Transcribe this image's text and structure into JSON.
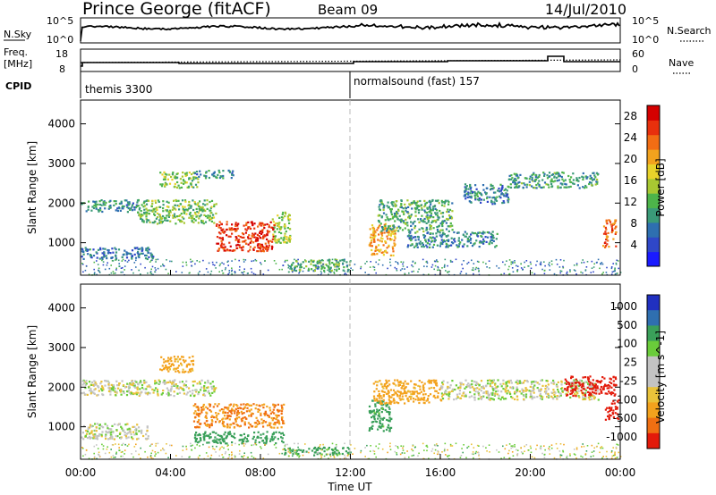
{
  "header": {
    "station": "Prince George (fitACF)",
    "beam": "Beam 09",
    "date": "14/Jul/2010"
  },
  "noise_panel": {
    "left_label": "N.Sky",
    "right_label": "N.Search",
    "left_ticks": [
      "10^5",
      "10^0"
    ],
    "right_ticks": [
      "10^5",
      "10^0"
    ],
    "line_color": "#000000"
  },
  "freq_panel": {
    "left_label_1": "Freq.",
    "left_label_2": "[MHz]",
    "right_label": "Nave",
    "left_ticks": [
      "18",
      "8"
    ],
    "right_ticks": [
      "60",
      "0"
    ]
  },
  "cpid": {
    "label": "CPID",
    "segments": [
      "themis 3300",
      "normalsound (fast) 157"
    ]
  },
  "chart_data": [
    {
      "type": "heatmap",
      "parameter": "power",
      "ylabel": "Slant Range [km]",
      "xlabel": "Time UT",
      "xlim_hours": [
        0,
        24
      ],
      "ylim_km": [
        180,
        4600
      ],
      "y_ticks": [
        "1000",
        "2000",
        "3000",
        "4000"
      ],
      "x_ticks": [
        "00:00",
        "04:00",
        "08:00",
        "12:00",
        "16:00",
        "20:00",
        "00:00"
      ],
      "colorbar": {
        "label": "Power [dB]",
        "ticks": [
          "4",
          "8",
          "12",
          "16",
          "20",
          "24",
          "28"
        ],
        "range": [
          0,
          30
        ]
      },
      "regions": [
        {
          "t": [
            0.0,
            2.6
          ],
          "r": [
            1800,
            2100
          ],
          "v": 9
        },
        {
          "t": [
            0.0,
            3.2
          ],
          "r": [
            600,
            900
          ],
          "v": 7
        },
        {
          "t": [
            2.5,
            6.0
          ],
          "r": [
            1500,
            2100
          ],
          "v": 13
        },
        {
          "t": [
            3.5,
            5.2
          ],
          "r": [
            2400,
            2800
          ],
          "v": 14
        },
        {
          "t": [
            5.0,
            6.8
          ],
          "r": [
            2650,
            2850
          ],
          "v": 9
        },
        {
          "t": [
            6.0,
            8.6
          ],
          "r": [
            800,
            1550
          ],
          "v": 26
        },
        {
          "t": [
            8.5,
            9.3
          ],
          "r": [
            1000,
            1800
          ],
          "v": 15
        },
        {
          "t": [
            9.3,
            12.0
          ],
          "r": [
            300,
            600
          ],
          "v": 12
        },
        {
          "t": [
            12.8,
            14.0
          ],
          "r": [
            700,
            1500
          ],
          "v": 20
        },
        {
          "t": [
            13.2,
            16.5
          ],
          "r": [
            1300,
            2100
          ],
          "v": 11
        },
        {
          "t": [
            14.5,
            18.5
          ],
          "r": [
            900,
            1300
          ],
          "v": 8
        },
        {
          "t": [
            17.0,
            19.0
          ],
          "r": [
            2000,
            2500
          ],
          "v": 8
        },
        {
          "t": [
            19.0,
            23.0
          ],
          "r": [
            2400,
            2800
          ],
          "v": 10
        },
        {
          "t": [
            23.2,
            23.8
          ],
          "r": [
            900,
            1600
          ],
          "v": 24
        }
      ]
    },
    {
      "type": "heatmap",
      "parameter": "velocity",
      "ylabel": "Slant Range [km]",
      "xlabel": "Time UT",
      "xlim_hours": [
        0,
        24
      ],
      "ylim_km": [
        180,
        4600
      ],
      "y_ticks": [
        "1000",
        "2000",
        "3000",
        "4000"
      ],
      "x_ticks": [
        "00:00",
        "04:00",
        "08:00",
        "12:00",
        "16:00",
        "20:00",
        "00:00"
      ],
      "colorbar": {
        "label": "Velocity [m s^-1]",
        "ticks": [
          "1000",
          "500",
          "100",
          "25",
          "-25",
          "-100",
          "-500",
          "-1000"
        ]
      },
      "regions": [
        {
          "t": [
            0.0,
            6.0
          ],
          "r": [
            1800,
            2200
          ],
          "v": 0
        },
        {
          "t": [
            0.0,
            3.0
          ],
          "r": [
            700,
            1100
          ],
          "v": 0
        },
        {
          "t": [
            3.5,
            5.0
          ],
          "r": [
            2400,
            2800
          ],
          "v": -150
        },
        {
          "t": [
            5.0,
            9.0
          ],
          "r": [
            1000,
            1600
          ],
          "v": -300
        },
        {
          "t": [
            5.0,
            9.0
          ],
          "r": [
            600,
            900
          ],
          "v": 200
        },
        {
          "t": [
            9.0,
            12.0
          ],
          "r": [
            300,
            500
          ],
          "v": 150
        },
        {
          "t": [
            12.8,
            13.8
          ],
          "r": [
            900,
            1700
          ],
          "v": 150
        },
        {
          "t": [
            13.0,
            16.0
          ],
          "r": [
            1600,
            2200
          ],
          "v": -150
        },
        {
          "t": [
            16.0,
            23.0
          ],
          "r": [
            1700,
            2200
          ],
          "v": 0
        },
        {
          "t": [
            21.5,
            23.8
          ],
          "r": [
            1800,
            2300
          ],
          "v": -800
        },
        {
          "t": [
            23.3,
            23.9
          ],
          "r": [
            1200,
            1700
          ],
          "v": -800
        }
      ]
    }
  ]
}
